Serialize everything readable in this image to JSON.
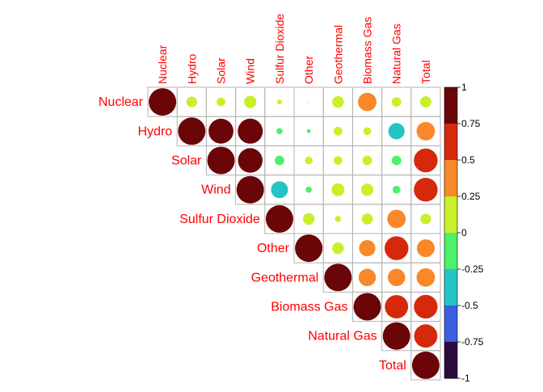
{
  "chart_data": {
    "type": "heatmap",
    "variables": [
      "Nuclear",
      "Hydro",
      "Solar",
      "Wind",
      "Sulfur Dioxide",
      "Other",
      "Geothermal",
      "Biomass Gas",
      "Natural Gas",
      "Total"
    ],
    "matrix_upper": [
      [
        1.0,
        0.15,
        0.1,
        0.2,
        0.03,
        0.0,
        0.18,
        0.45,
        0.12,
        0.17
      ],
      [
        null,
        1.0,
        0.82,
        0.83,
        -0.05,
        -0.02,
        0.1,
        0.08,
        -0.35,
        0.45
      ],
      [
        null,
        null,
        1.0,
        0.8,
        -0.12,
        0.08,
        0.1,
        0.12,
        -0.12,
        0.75
      ],
      [
        null,
        null,
        null,
        1.0,
        -0.38,
        -0.05,
        0.22,
        0.2,
        -0.08,
        0.75
      ],
      [
        null,
        null,
        null,
        null,
        1.0,
        0.18,
        0.05,
        0.16,
        0.45,
        0.15
      ],
      [
        null,
        null,
        null,
        null,
        null,
        1.0,
        0.18,
        0.35,
        0.75,
        0.42
      ],
      [
        null,
        null,
        null,
        null,
        null,
        null,
        1.0,
        0.4,
        0.4,
        0.45
      ],
      [
        null,
        null,
        null,
        null,
        null,
        null,
        null,
        1.0,
        0.72,
        0.74
      ],
      [
        null,
        null,
        null,
        null,
        null,
        null,
        null,
        null,
        1.0,
        0.72
      ],
      [
        null,
        null,
        null,
        null,
        null,
        null,
        null,
        null,
        null,
        1.0
      ]
    ],
    "color_scale": {
      "bins": [
        -1,
        -0.75,
        -0.5,
        -0.25,
        0,
        0.25,
        0.5,
        0.75,
        1
      ],
      "colors": [
        "#2d0a3e",
        "#3b5fe0",
        "#25c4c4",
        "#4cf06a",
        "#c8f02a",
        "#f8882a",
        "#d6290c",
        "#6b0608"
      ],
      "tick_labels": [
        "1",
        "0.75",
        "0.5",
        "0.25",
        "0",
        "-0.25",
        "-0.5",
        "-0.75",
        "-1"
      ]
    },
    "legend_placement": "right",
    "label_color": "#ff0000",
    "grid_color": "#b3b3b3"
  }
}
